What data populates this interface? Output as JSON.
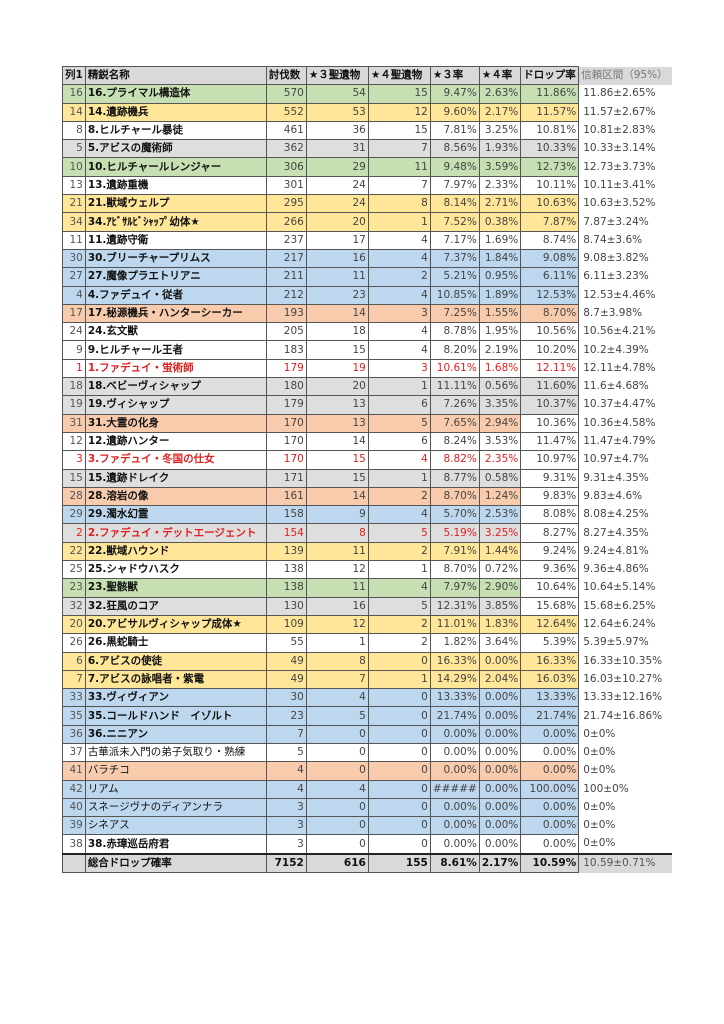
{
  "colors": {
    "g": "#c6e0b4",
    "y": "#ffe699",
    "s": "#dedede",
    "b": "#bdd7ee",
    "o": "#f8cbad",
    "w": "#ffffff"
  },
  "header": [
    "列1",
    "精鋭名称",
    "討伐数",
    "★３聖遺物",
    "★４聖遺物",
    "★３率",
    "★４率",
    "ドロップ率",
    "信頼区間（95%）"
  ],
  "rows": [
    {
      "id": "16",
      "name": "16.プライマル構造体",
      "k": "570",
      "s3": "54",
      "s4": "15",
      "r3": "9.47%",
      "r4": "2.63%",
      "d": "11.86%",
      "ci": "11.86±2.65%",
      "c": "g",
      "dc": "g",
      "bold": true
    },
    {
      "id": "14",
      "name": "14.遺跡機兵",
      "k": "552",
      "s3": "53",
      "s4": "12",
      "r3": "9.60%",
      "r4": "2.17%",
      "d": "11.57%",
      "ci": "11.57±2.67%",
      "c": "y",
      "dc": "y",
      "bold": true
    },
    {
      "id": "8",
      "name": "8.ヒルチャール暴徒",
      "k": "461",
      "s3": "36",
      "s4": "15",
      "r3": "7.81%",
      "r4": "3.25%",
      "d": "10.81%",
      "ci": "10.81±2.83%",
      "c": "w",
      "dc": "w",
      "bold": true
    },
    {
      "id": "5",
      "name": "5.アビスの魔術師",
      "k": "362",
      "s3": "31",
      "s4": "7",
      "r3": "8.56%",
      "r4": "1.93%",
      "d": "10.33%",
      "ci": "10.33±3.14%",
      "c": "s",
      "dc": "s",
      "bold": true
    },
    {
      "id": "10",
      "name": "10.ヒルチャールレンジャー",
      "k": "306",
      "s3": "29",
      "s4": "11",
      "r3": "9.48%",
      "r4": "3.59%",
      "d": "12.73%",
      "ci": "12.73±3.73%",
      "c": "g",
      "dc": "g",
      "bold": true
    },
    {
      "id": "13",
      "name": "13.遺跡重機",
      "k": "301",
      "s3": "24",
      "s4": "7",
      "r3": "7.97%",
      "r4": "2.33%",
      "d": "10.11%",
      "ci": "10.11±3.41%",
      "c": "w",
      "dc": "w",
      "bold": true
    },
    {
      "id": "21",
      "name": "21.獣域ウェルプ",
      "k": "295",
      "s3": "24",
      "s4": "8",
      "r3": "8.14%",
      "r4": "2.71%",
      "d": "10.63%",
      "ci": "10.63±3.52%",
      "c": "y",
      "dc": "y",
      "bold": true
    },
    {
      "id": "34",
      "name": "34.ｱﾋﾞｻﾙﾋﾞｼｬｯﾌﾟ幼体★",
      "k": "266",
      "s3": "20",
      "s4": "1",
      "r3": "7.52%",
      "r4": "0.38%",
      "d": "7.87%",
      "ci": "7.87±3.24%",
      "c": "y",
      "dc": "y",
      "bold": true
    },
    {
      "id": "11",
      "name": "11.遺跡守衛",
      "k": "237",
      "s3": "17",
      "s4": "4",
      "r3": "7.17%",
      "r4": "1.69%",
      "d": "8.74%",
      "ci": "8.74±3.6%",
      "c": "w",
      "dc": "w",
      "bold": true
    },
    {
      "id": "30",
      "name": "30.ブリーチャープリムス",
      "k": "217",
      "s3": "16",
      "s4": "4",
      "r3": "7.37%",
      "r4": "1.84%",
      "d": "9.08%",
      "ci": "9.08±3.82%",
      "c": "b",
      "dc": "b",
      "bold": true
    },
    {
      "id": "27",
      "name": "27.魔像プラエトリアニ",
      "k": "211",
      "s3": "11",
      "s4": "2",
      "r3": "5.21%",
      "r4": "0.95%",
      "d": "6.11%",
      "ci": "6.11±3.23%",
      "c": "b",
      "dc": "b",
      "bold": true
    },
    {
      "id": "4",
      "name": "4.ファデュイ・従者",
      "k": "212",
      "s3": "23",
      "s4": "4",
      "r3": "10.85%",
      "r4": "1.89%",
      "d": "12.53%",
      "ci": "12.53±4.46%",
      "c": "b",
      "dc": "b",
      "bold": true
    },
    {
      "id": "17",
      "name": "17.秘源機兵・ハンターシーカー",
      "k": "193",
      "s3": "14",
      "s4": "3",
      "r3": "7.25%",
      "r4": "1.55%",
      "d": "8.70%",
      "ci": "8.7±3.98%",
      "c": "o",
      "dc": "o",
      "bold": true
    },
    {
      "id": "24",
      "name": "24.玄文獣",
      "k": "205",
      "s3": "18",
      "s4": "4",
      "r3": "8.78%",
      "r4": "1.95%",
      "d": "10.56%",
      "ci": "10.56±4.21%",
      "c": "w",
      "dc": "w",
      "bold": true
    },
    {
      "id": "9",
      "name": "9.ヒルチャール王者",
      "k": "183",
      "s3": "15",
      "s4": "4",
      "r3": "8.20%",
      "r4": "2.19%",
      "d": "10.20%",
      "ci": "10.2±4.39%",
      "c": "w",
      "dc": "w",
      "bold": true
    },
    {
      "id": "1",
      "name": "1.ファデュイ・蛍術師",
      "k": "179",
      "s3": "19",
      "s4": "3",
      "r3": "10.61%",
      "r4": "1.68%",
      "d": "12.11%",
      "ci": "12.11±4.78%",
      "c": "w",
      "dc": "w",
      "bold": true,
      "red": true,
      "dred": true
    },
    {
      "id": "18",
      "name": "18.ベビーヴィシャップ",
      "k": "180",
      "s3": "20",
      "s4": "1",
      "r3": "11.11%",
      "r4": "0.56%",
      "d": "11.60%",
      "ci": "11.6±4.68%",
      "c": "s",
      "dc": "s",
      "bold": true
    },
    {
      "id": "19",
      "name": "19.ヴィシャップ",
      "k": "179",
      "s3": "13",
      "s4": "6",
      "r3": "7.26%",
      "r4": "3.35%",
      "d": "10.37%",
      "ci": "10.37±4.47%",
      "c": "s",
      "dc": "s",
      "bold": true
    },
    {
      "id": "31",
      "name": "31.大霊の化身",
      "k": "170",
      "s3": "13",
      "s4": "5",
      "r3": "7.65%",
      "r4": "2.94%",
      "d": "10.36%",
      "ci": "10.36±4.58%",
      "c": "o",
      "dc": "w",
      "bold": true
    },
    {
      "id": "12",
      "name": "12.遺跡ハンター",
      "k": "170",
      "s3": "14",
      "s4": "6",
      "r3": "8.24%",
      "r4": "3.53%",
      "d": "11.47%",
      "ci": "11.47±4.79%",
      "c": "w",
      "dc": "w",
      "bold": true
    },
    {
      "id": "3",
      "name": "3.ファデュイ・冬国の仕女",
      "k": "170",
      "s3": "15",
      "s4": "4",
      "r3": "8.82%",
      "r4": "2.35%",
      "d": "10.97%",
      "ci": "10.97±4.7%",
      "c": "w",
      "dc": "w",
      "bold": true,
      "red": true
    },
    {
      "id": "15",
      "name": "15.遺跡ドレイク",
      "k": "171",
      "s3": "15",
      "s4": "1",
      "r3": "8.77%",
      "r4": "0.58%",
      "d": "9.31%",
      "ci": "9.31±4.35%",
      "c": "s",
      "dc": "w",
      "bold": true
    },
    {
      "id": "28",
      "name": "28.溶岩の像",
      "k": "161",
      "s3": "14",
      "s4": "2",
      "r3": "8.70%",
      "r4": "1.24%",
      "d": "9.83%",
      "ci": "9.83±4.6%",
      "c": "o",
      "dc": "w",
      "bold": true
    },
    {
      "id": "29",
      "name": "29.濁水幻霊",
      "k": "158",
      "s3": "9",
      "s4": "4",
      "r3": "5.70%",
      "r4": "2.53%",
      "d": "8.08%",
      "ci": "8.08±4.25%",
      "c": "b",
      "dc": "w",
      "bold": true
    },
    {
      "id": "2",
      "name": "2.ファデュイ・デットエージェント",
      "k": "154",
      "s3": "8",
      "s4": "5",
      "r3": "5.19%",
      "r4": "3.25%",
      "d": "8.27%",
      "ci": "8.27±4.35%",
      "c": "s",
      "dc": "w",
      "bold": true,
      "red": true
    },
    {
      "id": "22",
      "name": "22.獣域ハウンド",
      "k": "139",
      "s3": "11",
      "s4": "2",
      "r3": "7.91%",
      "r4": "1.44%",
      "d": "9.24%",
      "ci": "9.24±4.81%",
      "c": "y",
      "dc": "w",
      "bold": true
    },
    {
      "id": "25",
      "name": "25.シャドウハスク",
      "k": "138",
      "s3": "12",
      "s4": "1",
      "r3": "8.70%",
      "r4": "0.72%",
      "d": "9.36%",
      "ci": "9.36±4.86%",
      "c": "w",
      "dc": "w",
      "bold": true
    },
    {
      "id": "23",
      "name": "23.聖骸獣",
      "k": "138",
      "s3": "11",
      "s4": "4",
      "r3": "7.97%",
      "r4": "2.90%",
      "d": "10.64%",
      "ci": "10.64±5.14%",
      "c": "g",
      "dc": "w",
      "bold": true
    },
    {
      "id": "32",
      "name": "32.狂風のコア",
      "k": "130",
      "s3": "16",
      "s4": "5",
      "r3": "12.31%",
      "r4": "3.85%",
      "d": "15.68%",
      "ci": "15.68±6.25%",
      "c": "s",
      "dc": "w",
      "bold": true
    },
    {
      "id": "20",
      "name": "20.アビサルヴィシャップ成体★",
      "k": "109",
      "s3": "12",
      "s4": "2",
      "r3": "11.01%",
      "r4": "1.83%",
      "d": "12.64%",
      "ci": "12.64±6.24%",
      "c": "y",
      "dc": "y",
      "bold": true
    },
    {
      "id": "26",
      "name": "26.黒蛇騎士",
      "k": "55",
      "s3": "1",
      "s4": "2",
      "r3": "1.82%",
      "r4": "3.64%",
      "d": "5.39%",
      "ci": "5.39±5.97%",
      "c": "w",
      "dc": "w",
      "bold": true
    },
    {
      "id": "6",
      "name": "6.アビスの使徒",
      "k": "49",
      "s3": "8",
      "s4": "0",
      "r3": "16.33%",
      "r4": "0.00%",
      "d": "16.33%",
      "ci": "16.33±10.35%",
      "c": "y",
      "dc": "y",
      "bold": true
    },
    {
      "id": "7",
      "name": "7.アビスの詠唱者・紫電",
      "k": "49",
      "s3": "7",
      "s4": "1",
      "r3": "14.29%",
      "r4": "2.04%",
      "d": "16.03%",
      "ci": "16.03±10.27%",
      "c": "y",
      "dc": "y",
      "bold": true
    },
    {
      "id": "33",
      "name": "33.ヴィヴィアン",
      "k": "30",
      "s3": "4",
      "s4": "0",
      "r3": "13.33%",
      "r4": "0.00%",
      "d": "13.33%",
      "ci": "13.33±12.16%",
      "c": "b",
      "dc": "b",
      "bold": true
    },
    {
      "id": "35",
      "name": "35.コールドハンド　イゾルト",
      "k": "23",
      "s3": "5",
      "s4": "0",
      "r3": "21.74%",
      "r4": "0.00%",
      "d": "21.74%",
      "ci": "21.74±16.86%",
      "c": "b",
      "dc": "b",
      "bold": true
    },
    {
      "id": "36",
      "name": "36.ニニアン",
      "k": "7",
      "s3": "0",
      "s4": "0",
      "r3": "0.00%",
      "r4": "0.00%",
      "d": "0.00%",
      "ci": "0±0%",
      "c": "b",
      "dc": "b",
      "bold": true
    },
    {
      "id": "37",
      "name": "古華派未入門の弟子気取り・熟練",
      "k": "5",
      "s3": "0",
      "s4": "0",
      "r3": "0.00%",
      "r4": "0.00%",
      "d": "0.00%",
      "ci": "0±0%",
      "c": "w",
      "dc": "w"
    },
    {
      "id": "41",
      "name": "バラチコ",
      "k": "4",
      "s3": "0",
      "s4": "0",
      "r3": "0.00%",
      "r4": "0.00%",
      "d": "0.00%",
      "ci": "0±0%",
      "c": "o",
      "dc": "o"
    },
    {
      "id": "42",
      "name": "リアム",
      "k": "4",
      "s3": "4",
      "s4": "0",
      "r3": "#####",
      "r4": "0.00%",
      "d": "100.00%",
      "ci": "100±0%",
      "c": "b",
      "dc": "b"
    },
    {
      "id": "40",
      "name": "スネージヴナのディアンナラ",
      "k": "3",
      "s3": "0",
      "s4": "0",
      "r3": "0.00%",
      "r4": "0.00%",
      "d": "0.00%",
      "ci": "0±0%",
      "c": "b",
      "dc": "b"
    },
    {
      "id": "39",
      "name": "シネアス",
      "k": "3",
      "s3": "0",
      "s4": "0",
      "r3": "0.00%",
      "r4": "0.00%",
      "d": "0.00%",
      "ci": "0±0%",
      "c": "b",
      "dc": "b"
    },
    {
      "id": "38",
      "name": "38.赤璋巡岳府君",
      "k": "3",
      "s3": "0",
      "s4": "0",
      "r3": "0.00%",
      "r4": "0.00%",
      "d": "0.00%",
      "ci": "0±0%",
      "c": "w",
      "dc": "w",
      "bold": true
    }
  ],
  "total": {
    "id": "",
    "name": "総合ドロップ確率",
    "k": "7152",
    "s3": "616",
    "s4": "155",
    "r3": "8.61%",
    "r4": "2.17%",
    "d": "10.59%",
    "ci": "10.59±0.71%"
  }
}
